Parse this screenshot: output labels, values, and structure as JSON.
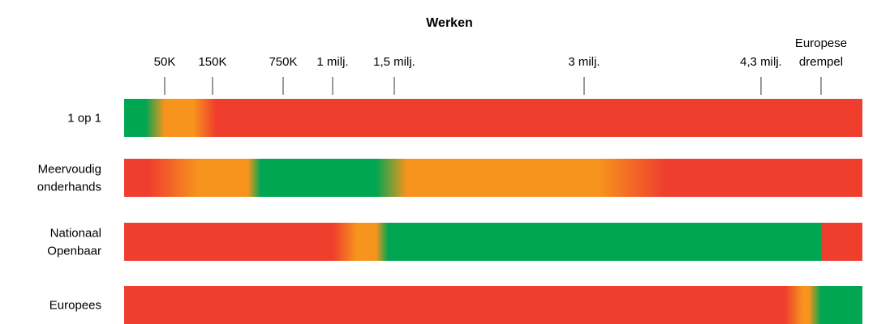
{
  "chart_data": {
    "type": "heatmap",
    "title": "Werken",
    "colors": {
      "green": "#00a651",
      "orange": "#f7941d",
      "red": "#ef3e2e",
      "tick": "#555555"
    },
    "axis": {
      "ticks": [
        {
          "label": "50K",
          "value": 50000
        },
        {
          "label": "150K",
          "value": 150000
        },
        {
          "label": "750K",
          "value": 750000
        },
        {
          "label": "1 milj.",
          "value": 1000000
        },
        {
          "label": "1,5 milj.",
          "value": 1500000
        },
        {
          "label": "3 milj.",
          "value": 3000000
        },
        {
          "label": "4,3 milj.",
          "value": 4300000
        },
        {
          "label": "Europese drempel",
          "lines": [
            "Europese",
            "drempel"
          ],
          "value": 4800000
        }
      ]
    },
    "rows": [
      {
        "label_lines": [
          "1 op 1"
        ],
        "stops": [
          {
            "value": 0,
            "color": "green"
          },
          {
            "value": 26000,
            "color": "green"
          },
          {
            "value": 50000,
            "color": "orange"
          },
          {
            "value": 110000,
            "color": "orange"
          },
          {
            "value": 175000,
            "color": "red"
          },
          {
            "value": 5200000,
            "color": "red"
          }
        ]
      },
      {
        "label_lines": [
          "Meervoudig",
          "onderhands"
        ],
        "stops": [
          {
            "value": 0,
            "color": "red"
          },
          {
            "value": 30000,
            "color": "red"
          },
          {
            "value": 120000,
            "color": "orange"
          },
          {
            "value": 450000,
            "color": "orange"
          },
          {
            "value": 560000,
            "color": "green"
          },
          {
            "value": 1350000,
            "color": "green"
          },
          {
            "value": 1600000,
            "color": "orange"
          },
          {
            "value": 3100000,
            "color": "orange"
          },
          {
            "value": 3600000,
            "color": "red"
          },
          {
            "value": 5200000,
            "color": "red"
          }
        ]
      },
      {
        "label_lines": [
          "Nationaal",
          "Openbaar"
        ],
        "stops": [
          {
            "value": 0,
            "color": "red"
          },
          {
            "value": 1000000,
            "color": "red"
          },
          {
            "value": 1200000,
            "color": "orange"
          },
          {
            "value": 1350000,
            "color": "orange"
          },
          {
            "value": 1450000,
            "color": "green"
          },
          {
            "value": 4800000,
            "color": "green"
          },
          {
            "value": 4810000,
            "color": "red"
          },
          {
            "value": 5200000,
            "color": "red"
          }
        ]
      },
      {
        "label_lines": [
          "Europees"
        ],
        "stops": [
          {
            "value": 0,
            "color": "red"
          },
          {
            "value": 4500000,
            "color": "red"
          },
          {
            "value": 4650000,
            "color": "orange"
          },
          {
            "value": 4700000,
            "color": "orange"
          },
          {
            "value": 4800000,
            "color": "green"
          },
          {
            "value": 5200000,
            "color": "green"
          }
        ]
      }
    ]
  }
}
